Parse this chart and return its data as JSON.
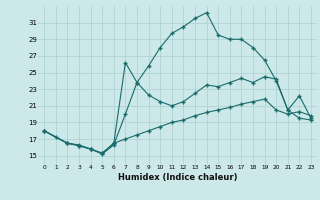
{
  "title": "",
  "xlabel": "Humidex (Indice chaleur)",
  "bg_color": "#cce8e8",
  "grid_color": "#aacfcf",
  "line_color": "#1a6b6b",
  "xlim": [
    -0.5,
    23.5
  ],
  "ylim": [
    14.0,
    33.0
  ],
  "yticks": [
    15,
    17,
    19,
    21,
    23,
    25,
    27,
    29,
    31
  ],
  "xticks": [
    0,
    1,
    2,
    3,
    4,
    5,
    6,
    7,
    8,
    9,
    10,
    11,
    12,
    13,
    14,
    15,
    16,
    17,
    18,
    19,
    20,
    21,
    22,
    23
  ],
  "series1_x": [
    0,
    1,
    2,
    3,
    4,
    5,
    6,
    7,
    8,
    9,
    10,
    11,
    12,
    13,
    14,
    15,
    16,
    17,
    18,
    19,
    20,
    21,
    22,
    23
  ],
  "series1_y": [
    18.0,
    17.2,
    16.5,
    16.3,
    15.8,
    15.2,
    16.3,
    20.0,
    23.8,
    25.8,
    28.0,
    29.7,
    30.5,
    31.5,
    32.2,
    29.5,
    29.0,
    29.0,
    28.0,
    26.5,
    24.0,
    20.5,
    19.5,
    19.3
  ],
  "series2_x": [
    0,
    2,
    3,
    4,
    5,
    6,
    7,
    8,
    9,
    10,
    11,
    12,
    13,
    14,
    15,
    16,
    17,
    18,
    19,
    20,
    21,
    22,
    23
  ],
  "series2_y": [
    18.0,
    16.5,
    16.2,
    15.8,
    15.3,
    16.5,
    26.2,
    23.8,
    22.3,
    21.5,
    21.0,
    21.5,
    22.5,
    23.5,
    23.3,
    23.8,
    24.3,
    23.8,
    24.5,
    24.2,
    20.5,
    22.2,
    19.5
  ],
  "series3_x": [
    0,
    2,
    3,
    4,
    5,
    6,
    7,
    8,
    9,
    10,
    11,
    12,
    13,
    14,
    15,
    16,
    17,
    18,
    19,
    20,
    21,
    22,
    23
  ],
  "series3_y": [
    18.0,
    16.5,
    16.2,
    15.8,
    15.3,
    16.5,
    17.0,
    17.5,
    18.0,
    18.5,
    19.0,
    19.3,
    19.8,
    20.2,
    20.5,
    20.8,
    21.2,
    21.5,
    21.8,
    20.5,
    20.0,
    20.3,
    19.8
  ]
}
